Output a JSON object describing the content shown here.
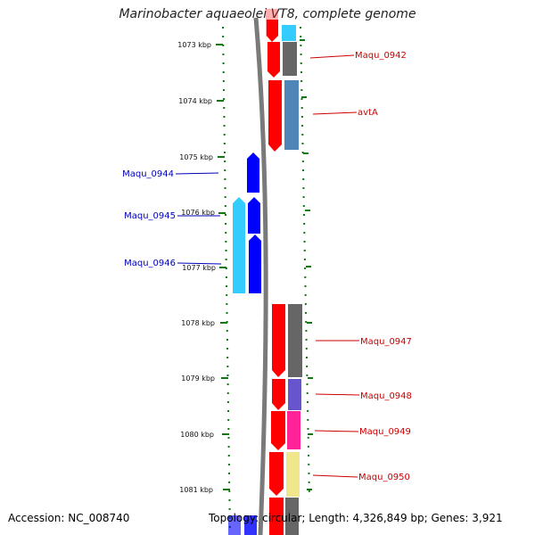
{
  "title": "Marinobacter aquaeolei VT8, complete genome",
  "accession": "Accession: NC_008740",
  "summary": "Topology: circular; Length: 4,326,849 bp; Genes: 3,921",
  "colors": {
    "forward_cds": "#ff0000",
    "reverse_cds": "#0000ff",
    "reverse_outer": "#33ccff",
    "backbone": "#7a7a7a",
    "tick": "#117711",
    "forward_label": "#cc0000",
    "reverse_label": "#0000bb"
  },
  "ticks": [
    "1073 kbp",
    "1074 kbp",
    "1075 kbp",
    "1076 kbp",
    "1077 kbp",
    "1078 kbp",
    "1079 kbp",
    "1080 kbp",
    "1081 kbp"
  ],
  "forward_labels": [
    "Maqu_0942",
    "avtA",
    "Maqu_0947",
    "Maqu_0948",
    "Maqu_0949",
    "Maqu_0950"
  ],
  "reverse_labels": [
    "Maqu_0944",
    "Maqu_0945",
    "Maqu_0946"
  ]
}
